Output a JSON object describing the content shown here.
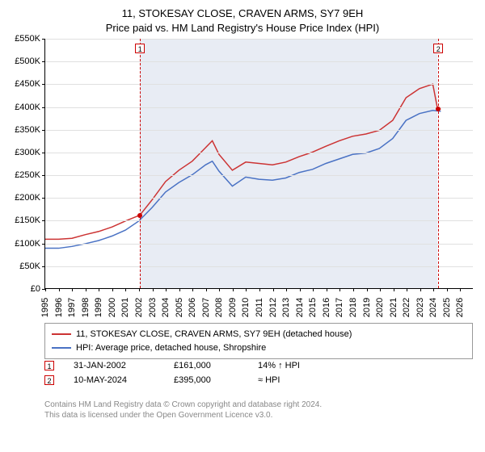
{
  "title": {
    "line1": "11, STOKESAY CLOSE, CRAVEN ARMS, SY7 9EH",
    "line2": "Price paid vs. HM Land Registry's House Price Index (HPI)"
  },
  "chart": {
    "type": "line",
    "background_color": "#ffffff",
    "grid_color": "#e0e0e0",
    "shaded_band_color": "#e8ecf4",
    "axis_color": "#000000",
    "xlim": [
      1995,
      2027
    ],
    "ylim": [
      0,
      550000
    ],
    "ytick_step": 50000,
    "yticks": [
      "£0",
      "£50K",
      "£100K",
      "£150K",
      "£200K",
      "£250K",
      "£300K",
      "£350K",
      "£400K",
      "£450K",
      "£500K",
      "£550K"
    ],
    "xtick_step": 1,
    "xticks": [
      "1995",
      "1996",
      "1997",
      "1998",
      "1999",
      "2000",
      "2001",
      "2002",
      "2003",
      "2004",
      "2005",
      "2006",
      "2007",
      "2008",
      "2009",
      "2010",
      "2011",
      "2012",
      "2013",
      "2014",
      "2015",
      "2016",
      "2017",
      "2018",
      "2019",
      "2020",
      "2021",
      "2022",
      "2023",
      "2024",
      "2025",
      "2026"
    ],
    "label_fontsize": 11,
    "series": [
      {
        "name": "11, STOKESAY CLOSE, CRAVEN ARMS, SY7 9EH (detached house)",
        "color": "#cc3333",
        "line_width": 1.5,
        "years": [
          1995,
          1996,
          1997,
          1998,
          1999,
          2000,
          2001,
          2002,
          2002.08,
          2003,
          2004,
          2005,
          2006,
          2007,
          2007.5,
          2008,
          2009,
          2010,
          2011,
          2012,
          2013,
          2014,
          2015,
          2016,
          2017,
          2018,
          2019,
          2020,
          2021,
          2022,
          2023,
          2024,
          2024.36,
          2024.6
        ],
        "values": [
          108000,
          108000,
          110000,
          118000,
          125000,
          135000,
          148000,
          160000,
          161000,
          195000,
          235000,
          260000,
          280000,
          310000,
          325000,
          295000,
          260000,
          278000,
          275000,
          272000,
          278000,
          290000,
          300000,
          313000,
          325000,
          335000,
          340000,
          348000,
          370000,
          420000,
          440000,
          450000,
          395000,
          395000
        ]
      },
      {
        "name": "HPI: Average price, detached house, Shropshire",
        "color": "#4a72c4",
        "line_width": 1.5,
        "years": [
          1995,
          1996,
          1997,
          1998,
          1999,
          2000,
          2001,
          2002,
          2003,
          2004,
          2005,
          2006,
          2007,
          2007.5,
          2008,
          2009,
          2010,
          2011,
          2012,
          2013,
          2014,
          2015,
          2016,
          2017,
          2018,
          2019,
          2020,
          2021,
          2022,
          2023,
          2024,
          2024.6
        ],
        "values": [
          88000,
          88000,
          92000,
          98000,
          105000,
          115000,
          128000,
          148000,
          178000,
          212000,
          233000,
          250000,
          272000,
          280000,
          258000,
          225000,
          245000,
          240000,
          238000,
          243000,
          255000,
          262000,
          275000,
          285000,
          295000,
          298000,
          308000,
          330000,
          370000,
          385000,
          392000,
          390000
        ]
      }
    ],
    "sale_markers": [
      {
        "label": "1",
        "year": 2002.08,
        "value": 161000
      },
      {
        "label": "2",
        "year": 2024.36,
        "value": 395000
      }
    ],
    "marker_color": "#cc0000",
    "marker_fill": "#ffffff"
  },
  "legend": {
    "items": [
      {
        "color": "#cc3333",
        "label": "11, STOKESAY CLOSE, CRAVEN ARMS, SY7 9EH (detached house)"
      },
      {
        "color": "#4a72c4",
        "label": "HPI: Average price, detached house, Shropshire"
      }
    ]
  },
  "sales": [
    {
      "marker": "1",
      "date": "31-JAN-2002",
      "price": "£161,000",
      "hpi": "14% ↑ HPI"
    },
    {
      "marker": "2",
      "date": "10-MAY-2024",
      "price": "£395,000",
      "hpi": "≈ HPI"
    }
  ],
  "credits": {
    "line1": "Contains HM Land Registry data © Crown copyright and database right 2024.",
    "line2": "This data is licensed under the Open Government Licence v3.0."
  }
}
